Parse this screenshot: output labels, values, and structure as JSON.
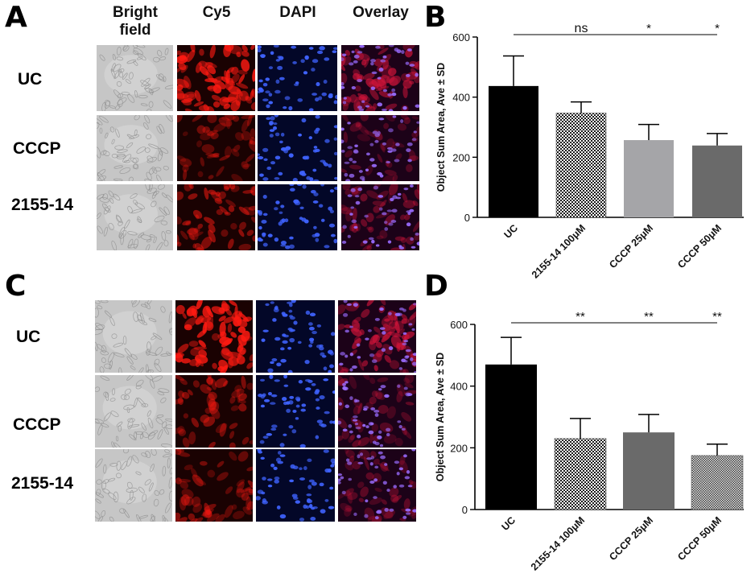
{
  "panels": {
    "A": "A",
    "B": "B",
    "C": "C",
    "D": "D"
  },
  "columns": {
    "bright_field_line1": "Bright",
    "bright_field_line2": "field",
    "cy5": "Cy5",
    "dapi": "DAPI",
    "overlay": "Overlay"
  },
  "rows_top": [
    "UC",
    "CCCP",
    "2155-14"
  ],
  "rows_bottom": [
    "UC",
    "CCCP",
    "2155-14"
  ],
  "colors": {
    "bright": "#c9c9c9",
    "cy5": "#b00c0c",
    "dapi": "#0a1a6b",
    "overlay": "#4a0a3a",
    "bar_uc": "#000000",
    "bar_grey_light": "#a5a5a8",
    "bar_grey_dark": "#6a6a6a"
  },
  "chart_data": [
    {
      "type": "bar",
      "panel": "B",
      "ylabel": "Object Sum Area, Ave ± SD",
      "categories": [
        "UC",
        "2155-14 100μM",
        "CCCP 25μM",
        "CCCP 50μM"
      ],
      "values": [
        437,
        347,
        257,
        239
      ],
      "errors": [
        100,
        37,
        52,
        40
      ],
      "fills": [
        "solid-black",
        "checker",
        "solid-light-grey",
        "solid-dark-grey"
      ],
      "ylim": [
        0,
        600
      ],
      "yticks": [
        0,
        200,
        400,
        600
      ],
      "significance": [
        "ns",
        "*",
        "*"
      ]
    },
    {
      "type": "bar",
      "panel": "D",
      "ylabel": "Object Sum Area, Ave ± SD",
      "categories": [
        "UC",
        "2155-14 100μM",
        "CCCP 25μM",
        "CCCP 50μM"
      ],
      "values": [
        470,
        230,
        250,
        175
      ],
      "errors": [
        88,
        65,
        58,
        37
      ],
      "fills": [
        "solid-black",
        "checker",
        "solid-dark-grey",
        "fine-checker"
      ],
      "ylim": [
        0,
        600
      ],
      "yticks": [
        0,
        200,
        400,
        600
      ],
      "significance": [
        "**",
        "**",
        "**"
      ]
    }
  ]
}
